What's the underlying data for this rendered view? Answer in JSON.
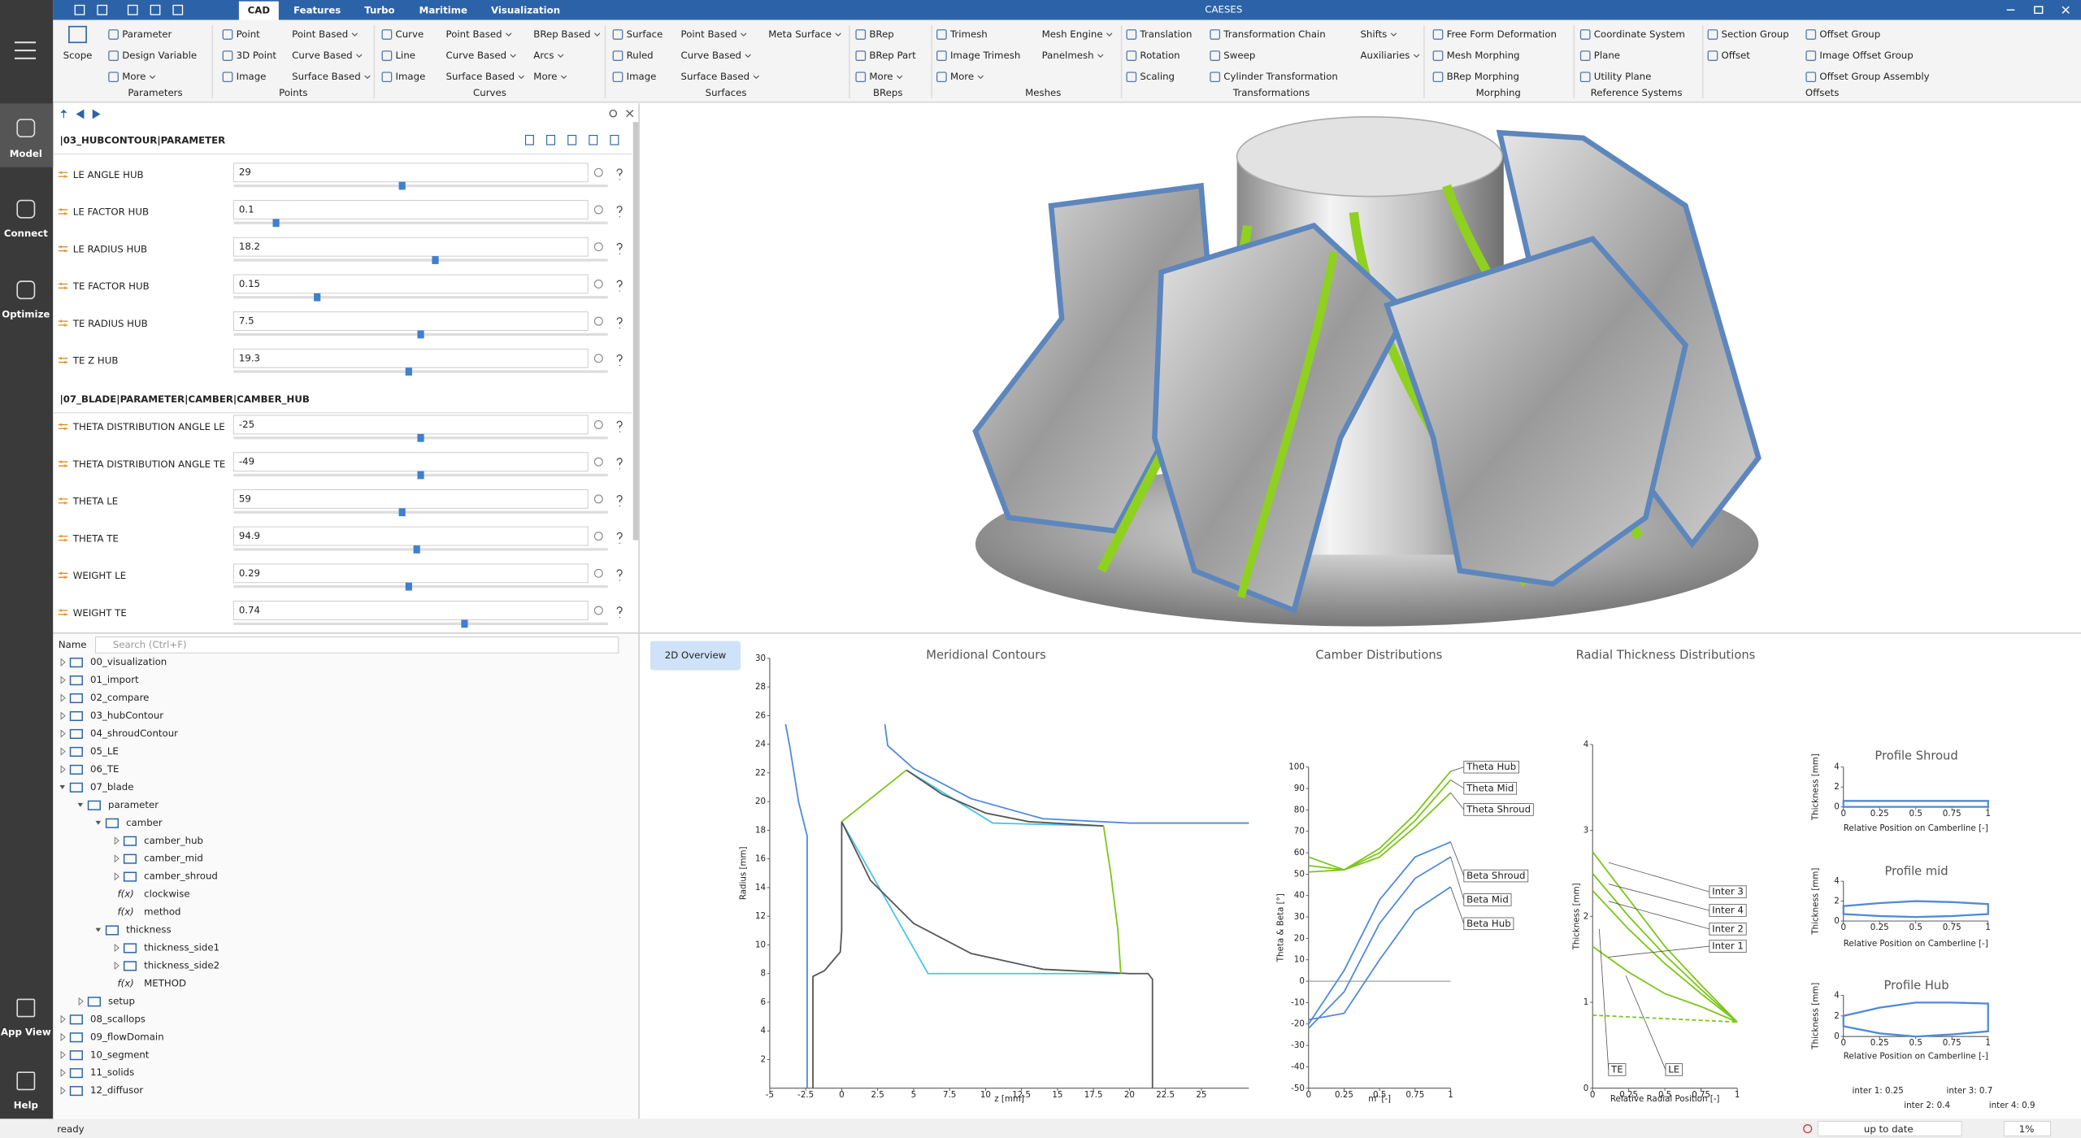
{
  "titlebar": {
    "app": "CAESES",
    "tabs": [
      "CAD",
      "Features",
      "Turbo",
      "Maritime",
      "Visualization"
    ],
    "active_tab": 0
  },
  "sidebar": {
    "items": [
      "Model",
      "Connect",
      "Optimize",
      "App View",
      "Help"
    ],
    "active": 0
  },
  "ribbon": {
    "groups": [
      {
        "label": "Parameters",
        "columns": [
          [
            {
              "text": "Scope"
            }
          ],
          [
            {
              "text": "Parameter"
            },
            {
              "text": "Design Variable"
            },
            {
              "text": "More",
              "menu": true
            }
          ]
        ]
      },
      {
        "label": "Points",
        "columns": [
          [
            {
              "text": "Point"
            },
            {
              "text": "3D Point"
            },
            {
              "text": "Image"
            }
          ],
          [
            {
              "text": "Point Based",
              "menu": true
            },
            {
              "text": "Curve Based",
              "menu": true
            },
            {
              "text": "Surface Based",
              "menu": true
            }
          ]
        ]
      },
      {
        "label": "Curves",
        "columns": [
          [
            {
              "text": "Curve"
            },
            {
              "text": "Line"
            },
            {
              "text": "Image"
            }
          ],
          [
            {
              "text": "Point Based",
              "menu": true
            },
            {
              "text": "Curve Based",
              "menu": true
            },
            {
              "text": "Surface Based",
              "menu": true
            }
          ],
          [
            {
              "text": "BRep Based",
              "menu": true
            },
            {
              "text": "Arcs",
              "menu": true
            },
            {
              "text": "More",
              "menu": true
            }
          ]
        ]
      },
      {
        "label": "Surfaces",
        "columns": [
          [
            {
              "text": "Surface"
            },
            {
              "text": "Ruled"
            },
            {
              "text": "Image"
            }
          ],
          [
            {
              "text": "Point Based",
              "menu": true
            },
            {
              "text": "Curve Based",
              "menu": true
            },
            {
              "text": "Surface Based",
              "menu": true
            }
          ],
          [
            {
              "text": "Meta Surface",
              "menu": true
            }
          ]
        ]
      },
      {
        "label": "BReps",
        "columns": [
          [
            {
              "text": "BRep"
            },
            {
              "text": "BRep Part"
            },
            {
              "text": "More",
              "menu": true
            }
          ]
        ]
      },
      {
        "label": "Meshes",
        "columns": [
          [
            {
              "text": "Trimesh"
            },
            {
              "text": "Image Trimesh"
            },
            {
              "text": "More",
              "menu": true
            }
          ],
          [
            {
              "text": "Mesh Engine",
              "menu": true
            },
            {
              "text": "Panelmesh",
              "menu": true
            }
          ]
        ]
      },
      {
        "label": "Transformations",
        "columns": [
          [
            {
              "text": "Translation"
            },
            {
              "text": "Rotation"
            },
            {
              "text": "Scaling"
            }
          ],
          [
            {
              "text": "Transformation Chain"
            },
            {
              "text": "Sweep"
            },
            {
              "text": "Cylinder Transformation"
            }
          ],
          [
            {
              "text": "Shifts",
              "menu": true
            },
            {
              "text": "Auxiliaries",
              "menu": true
            }
          ]
        ]
      },
      {
        "label": "Morphing",
        "columns": [
          [
            {
              "text": "Free Form Deformation"
            },
            {
              "text": "Mesh Morphing"
            },
            {
              "text": "BRep Morphing"
            }
          ]
        ]
      },
      {
        "label": "Reference Systems",
        "columns": [
          [
            {
              "text": "Coordinate System"
            },
            {
              "text": "Plane"
            },
            {
              "text": "Utility Plane"
            }
          ]
        ]
      },
      {
        "label": "Offsets",
        "columns": [
          [
            {
              "text": "Section Group"
            },
            {
              "text": "Offset"
            }
          ],
          [
            {
              "text": "Offset Group"
            },
            {
              "text": "Image Offset Group"
            },
            {
              "text": "Offset Group Assembly"
            }
          ]
        ]
      }
    ]
  },
  "parameters": {
    "sections": [
      {
        "title": "|03_HUBCONTOUR|PARAMETER",
        "rows": [
          {
            "label": "LE ANGLE HUB",
            "value": 29
          },
          {
            "label": "LE FACTOR HUB",
            "value": 0.1
          },
          {
            "label": "LE RADIUS HUB",
            "value": 18.2
          },
          {
            "label": "TE FACTOR HUB",
            "value": 0.15
          },
          {
            "label": "TE RADIUS HUB",
            "value": 7.5
          },
          {
            "label": "TE Z HUB",
            "value": 19.3
          }
        ]
      },
      {
        "title": "|07_BLADE|PARAMETER|CAMBER|CAMBER_HUB",
        "rows": [
          {
            "label": "THETA DISTRIBUTION ANGLE LE",
            "value": -25
          },
          {
            "label": "THETA DISTRIBUTION ANGLE TE",
            "value": -49
          },
          {
            "label": "THETA LE",
            "value": 59
          },
          {
            "label": "THETA TE",
            "value": 94.9
          },
          {
            "label": "WEIGHT LE",
            "value": 0.29
          },
          {
            "label": "WEIGHT TE",
            "value": 0.74
          }
        ]
      }
    ]
  },
  "tree": {
    "header": "Name",
    "search_placeholder": "Search (Ctrl+F)",
    "items": [
      {
        "label": "00_visualization",
        "expanded": false
      },
      {
        "label": "01_import",
        "expanded": false
      },
      {
        "label": "02_compare",
        "expanded": false
      },
      {
        "label": "03_hubContour",
        "expanded": false
      },
      {
        "label": "04_shroudContour",
        "expanded": false
      },
      {
        "label": "05_LE",
        "expanded": false
      },
      {
        "label": "06_TE",
        "expanded": false
      },
      {
        "label": "07_blade",
        "expanded": true,
        "children": [
          {
            "label": "parameter",
            "expanded": true,
            "children": [
              {
                "label": "camber",
                "expanded": true,
                "children": [
                  {
                    "label": "camber_hub",
                    "expanded": false
                  },
                  {
                    "label": "camber_mid",
                    "expanded": false
                  },
                  {
                    "label": "camber_shroud",
                    "expanded": false
                  },
                  {
                    "label": "clockwise",
                    "icon": "f(x)"
                  },
                  {
                    "label": "method",
                    "icon": "f(x)"
                  }
                ]
              },
              {
                "label": "thickness",
                "expanded": true,
                "children": [
                  {
                    "label": "thickness_side1",
                    "expanded": false
                  },
                  {
                    "label": "thickness_side2",
                    "expanded": false
                  },
                  {
                    "label": "METHOD",
                    "icon": "f(x)"
                  }
                ]
              }
            ]
          },
          {
            "label": "setup",
            "expanded": false
          }
        ]
      },
      {
        "label": "08_scallops",
        "expanded": false
      },
      {
        "label": "09_flowDomain",
        "expanded": false
      },
      {
        "label": "10_segment",
        "expanded": false
      },
      {
        "label": "11_solids",
        "expanded": false
      },
      {
        "label": "12_diffusor",
        "expanded": false
      }
    ]
  },
  "overview": {
    "tab": "2D Overview",
    "charts": [
      {
        "type": "line",
        "title": "Meridional Contours",
        "xlabel": "z [mm]",
        "ylabel": "Radius [mm]",
        "xlim": [
          -5,
          28.3
        ],
        "ylim": [
          0,
          30
        ],
        "xticks": [
          -5,
          -2.5,
          0,
          2.5,
          5,
          7.5,
          10,
          12.5,
          15,
          17.5,
          20,
          22.5,
          25
        ],
        "yticks": [
          2,
          4,
          6,
          8,
          10,
          12,
          14,
          16,
          18,
          20,
          22,
          24,
          26,
          28,
          30
        ],
        "series": [
          {
            "color": "#4f8ad8",
            "x": [
              -3.9,
              -3.6,
              -3.0,
              -2.4,
              -2.4
            ],
            "y": [
              25.4,
              23.8,
              20,
              17.6,
              0
            ]
          },
          {
            "color": "#4f8ad8",
            "x": [
              3.0,
              3.2,
              5,
              9,
              14,
              20,
              28.3
            ],
            "y": [
              25.4,
              23.9,
              22.3,
              20.2,
              18.8,
              18.5,
              18.5
            ]
          },
          {
            "color": "#49c6e5",
            "x": [
              0,
              6,
              19.4
            ],
            "y": [
              18.6,
              8,
              8
            ]
          },
          {
            "color": "#49c6e5",
            "x": [
              4.5,
              10.5,
              18.2
            ],
            "y": [
              22.2,
              18.5,
              18.3
            ]
          },
          {
            "color": "#555555",
            "x": [
              -2,
              -2,
              -1.2,
              -0.1,
              0,
              0,
              2,
              5,
              9,
              14,
              20,
              21.3,
              21.6,
              21.6
            ],
            "y": [
              0,
              7.8,
              8.2,
              9.5,
              11,
              18.6,
              14.5,
              11.5,
              9.4,
              8.3,
              8,
              8,
              7.6,
              0
            ]
          },
          {
            "color": "#555555",
            "x": [
              4.5,
              7,
              10,
              13,
              18.2
            ],
            "y": [
              22.2,
              20.5,
              19.2,
              18.6,
              18.3
            ]
          },
          {
            "color": "#7cc61a",
            "x": [
              0,
              4.5
            ],
            "y": [
              18.6,
              22.2
            ]
          },
          {
            "color": "#7cc61a",
            "x": [
              18.2,
              18.7,
              19.2,
              19.4
            ],
            "y": [
              18.3,
              15,
              11,
              8
            ]
          }
        ]
      },
      {
        "type": "line",
        "title": "Camber Distributions",
        "xlabel": "m' [-]",
        "ylabel": "Theta & Beta [°]",
        "xlim": [
          0,
          1
        ],
        "ylim": [
          -50,
          100
        ],
        "zeroline": true,
        "xticks": [
          0,
          0.25,
          0.5,
          0.75,
          1
        ],
        "yticks": [
          -50,
          -40,
          -30,
          -20,
          -10,
          0,
          10,
          20,
          30,
          40,
          50,
          60,
          70,
          80,
          90,
          100
        ],
        "x": [
          0,
          0.25,
          0.5,
          0.75,
          1
        ],
        "series": [
          {
            "name": "Theta Hub",
            "color": "#7cc61a",
            "values": [
              58,
              52,
              62,
              78,
              98
            ]
          },
          {
            "name": "Theta Mid",
            "color": "#7cc61a",
            "values": [
              54,
              52,
              60,
              75,
              94
            ]
          },
          {
            "name": "Theta Shroud",
            "color": "#7cc61a",
            "values": [
              51,
              52,
              58,
              72,
              88
            ]
          },
          {
            "name": "Beta Shroud",
            "color": "#4f8ad8",
            "values": [
              -20,
              5,
              38,
              58,
              65
            ]
          },
          {
            "name": "Beta Mid",
            "color": "#4f8ad8",
            "values": [
              -22,
              -5,
              27,
              48,
              58
            ]
          },
          {
            "name": "Beta Hub",
            "color": "#4f8ad8",
            "values": [
              -18,
              -15,
              10,
              33,
              44
            ]
          }
        ]
      },
      {
        "type": "line",
        "title": "Radial Thickness Distributions",
        "xlabel": "Relative Radial Position [-]",
        "ylabel": "Thickness [mm]",
        "xlim": [
          0,
          1
        ],
        "ylim": [
          0,
          4
        ],
        "xticks": [
          0,
          0.25,
          0.5,
          0.75,
          1
        ],
        "yticks": [
          0,
          1,
          2,
          3,
          4
        ],
        "x": [
          0,
          0.25,
          0.5,
          0.75,
          1
        ],
        "series": [
          {
            "name": "Inter 3",
            "color": "#7cc61a",
            "values": [
              2.75,
              2.2,
              1.65,
              1.2,
              0.77
            ]
          },
          {
            "name": "Inter 4",
            "color": "#7cc61a",
            "values": [
              2.5,
              2.0,
              1.55,
              1.15,
              0.77
            ]
          },
          {
            "name": "Inter 2",
            "color": "#7cc61a",
            "values": [
              2.3,
              1.85,
              1.45,
              1.1,
              0.77
            ]
          },
          {
            "name": "Inter 1",
            "color": "#7cc61a",
            "values": [
              1.65,
              1.35,
              1.1,
              0.95,
              0.77
            ]
          },
          {
            "color": "#7cc61a",
            "dashed": true,
            "values": [
              0.85,
              0.83,
              0.81,
              0.79,
              0.77
            ]
          }
        ],
        "annotations": [
          "TE",
          "LE"
        ],
        "notes": [
          "inter 1: 0.25",
          "inter 3: 0.7",
          "inter 2: 0.4",
          "inter 4: 0.9"
        ]
      },
      {
        "type": "profile",
        "title": "Profile Shroud",
        "xlabel": "Relative Position on Camberline [-]",
        "ylabel": "Thickness [mm]",
        "xlim": [
          0,
          1
        ],
        "ylim": [
          0,
          4
        ],
        "xticks": [
          0,
          0.25,
          0.5,
          0.75,
          1
        ],
        "yticks": [
          0,
          2,
          4
        ],
        "x": [
          0,
          0.25,
          0.5,
          0.75,
          1
        ],
        "color": "#4f8ad8",
        "upper": [
          0.6,
          0.6,
          0.6,
          0.6,
          0.6
        ],
        "lower": [
          0,
          0,
          0,
          0,
          0
        ]
      },
      {
        "type": "profile",
        "title": "Profile mid",
        "xlabel": "Relative Position on Camberline [-]",
        "ylabel": "Thickness [mm]",
        "xlim": [
          0,
          1
        ],
        "ylim": [
          0,
          4
        ],
        "xticks": [
          0,
          0.25,
          0.5,
          0.75,
          1
        ],
        "yticks": [
          0,
          2,
          4
        ],
        "x": [
          0,
          0.25,
          0.5,
          0.75,
          1
        ],
        "color": "#4f8ad8",
        "upper": [
          1.5,
          1.8,
          2,
          1.9,
          1.7
        ],
        "lower": [
          0.7,
          0.5,
          0.4,
          0.5,
          0.7
        ]
      },
      {
        "type": "profile",
        "title": "Profile Hub",
        "xlabel": "Relative Position on Camberline [-]",
        "ylabel": "Thickness [mm]",
        "xlim": [
          0,
          1
        ],
        "ylim": [
          0,
          4
        ],
        "xticks": [
          0,
          0.25,
          0.5,
          0.75,
          1
        ],
        "yticks": [
          0,
          2,
          4
        ],
        "x": [
          0,
          0.25,
          0.5,
          0.75,
          1
        ],
        "color": "#4f8ad8",
        "upper": [
          2,
          2.8,
          3.3,
          3.3,
          3.2
        ],
        "lower": [
          1,
          0.3,
          0,
          0.2,
          0.5
        ]
      }
    ]
  },
  "status": {
    "message": "ready",
    "state": "up to date",
    "progress": "1%"
  }
}
